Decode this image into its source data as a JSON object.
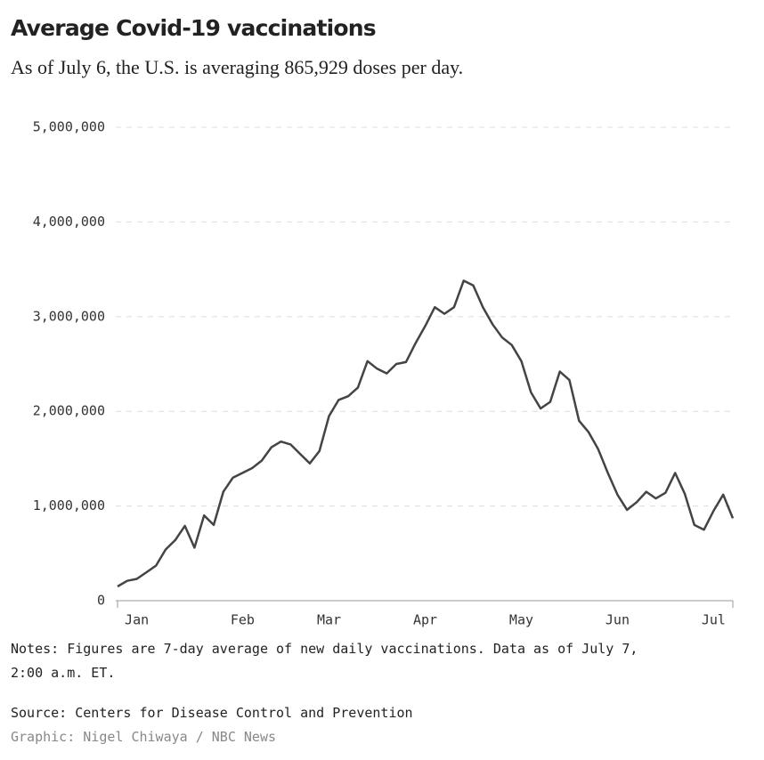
{
  "chart_data": {
    "type": "line",
    "title": "Average Covid-19 vaccinations",
    "subtitle": "As of July 6, the U.S. is averaging 865,929 doses per day.",
    "notes": "Notes: Figures are 7-day average of new daily vaccinations. Data as of July 7,",
    "notes_2": "2:00 a.m. ET.",
    "source": "Source: Centers for Disease Control and Prevention",
    "credit": "Graphic: Nigel Chiwaya / NBC News",
    "categories": [
      null,
      null,
      "Jan",
      null,
      null,
      null,
      null,
      null,
      null,
      null,
      null,
      null,
      null,
      "Feb",
      null,
      null,
      null,
      null,
      null,
      null,
      null,
      null,
      "Mar",
      null,
      null,
      null,
      null,
      null,
      null,
      null,
      null,
      null,
      "Apr",
      null,
      null,
      null,
      null,
      null,
      null,
      null,
      null,
      null,
      "May",
      null,
      null,
      null,
      null,
      null,
      null,
      null,
      null,
      null,
      "Jun",
      null,
      null,
      null,
      null,
      null,
      null,
      null,
      null,
      null,
      "Jul",
      null,
      null
    ],
    "series": [
      {
        "name": "Average vaccinations",
        "color": "#444444",
        "values": [
          150000,
          210000,
          230000,
          300000,
          370000,
          540000,
          640000,
          790000,
          560000,
          900000,
          800000,
          1150000,
          1300000,
          1350000,
          1400000,
          1480000,
          1620000,
          1680000,
          1650000,
          1550000,
          1450000,
          1580000,
          1950000,
          2120000,
          2160000,
          2250000,
          2530000,
          2450000,
          2400000,
          2500000,
          2520000,
          2720000,
          2900000,
          3100000,
          3030000,
          3100000,
          3380000,
          3330000,
          3100000,
          2920000,
          2780000,
          2700000,
          2530000,
          2200000,
          2030000,
          2100000,
          2420000,
          2330000,
          1900000,
          1780000,
          1600000,
          1350000,
          1120000,
          960000,
          1040000,
          1150000,
          1080000,
          1140000,
          1350000,
          1130000,
          800000,
          750000,
          950000,
          1120000,
          870000
        ]
      }
    ],
    "ylim": [
      0,
      5000000
    ],
    "yticks": [
      0,
      {
        "value": 1000000,
        "label": "1,000,000"
      },
      {
        "value": 2000000,
        "label": "2,000,000"
      },
      {
        "value": 3000000,
        "label": "3,000,000"
      },
      {
        "value": 4000000,
        "label": "4,000,000"
      },
      {
        "value": 5000000,
        "label": "5,000,000"
      }
    ],
    "grid": true
  }
}
